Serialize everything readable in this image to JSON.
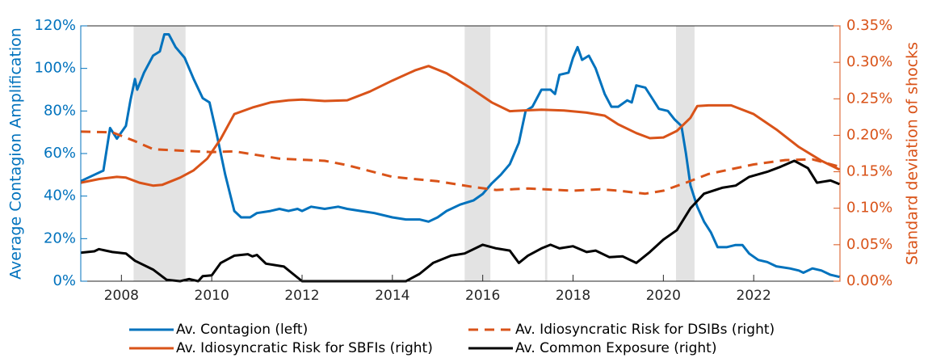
{
  "chart_data": {
    "type": "line",
    "ylabel": "Average Contagion Amplification",
    "y2label": "Standard deviation of shocks",
    "xlim": [
      2007.1,
      2023.91
    ],
    "xticks": [
      2008,
      2010,
      2012,
      2014,
      2016,
      2018,
      2020,
      2022
    ],
    "ylim": [
      0,
      120
    ],
    "yticks": [
      {
        "value": 0,
        "label": "0%"
      },
      {
        "value": 20,
        "label": "20%"
      },
      {
        "value": 40,
        "label": "40%"
      },
      {
        "value": 60,
        "label": "60%"
      },
      {
        "value": 80,
        "label": "80%"
      },
      {
        "value": 100,
        "label": "100%"
      },
      {
        "value": 120,
        "label": "120%"
      }
    ],
    "y2lim": [
      0,
      0.35
    ],
    "y2ticks": [
      {
        "value": 0,
        "label": "0.00%"
      },
      {
        "value": 0.05,
        "label": "0.05%"
      },
      {
        "value": 0.1,
        "label": "0.10%"
      },
      {
        "value": 0.15,
        "label": "0.15%"
      },
      {
        "value": 0.2,
        "label": "0.20%"
      },
      {
        "value": 0.25,
        "label": "0.25%"
      },
      {
        "value": 0.3,
        "label": "0.30%"
      },
      {
        "value": 0.35,
        "label": "0.35%"
      }
    ],
    "shaded_periods": [
      [
        2008.27,
        2009.42
      ],
      [
        2015.6,
        2016.17
      ],
      [
        2017.38,
        2017.43
      ],
      [
        2020.28,
        2020.69
      ]
    ],
    "shade_color": "#e3e3e3",
    "series": [
      {
        "name": "Av. Contagion (left)",
        "color": "#0072bd",
        "dash": false,
        "x": [
          2007.1,
          2007.4,
          2007.6,
          2007.75,
          2007.9,
          2008.1,
          2008.2,
          2008.3,
          2008.35,
          2008.5,
          2008.7,
          2008.85,
          2008.95,
          2009.05,
          2009.2,
          2009.4,
          2009.6,
          2009.8,
          2009.95,
          2010.1,
          2010.3,
          2010.5,
          2010.65,
          2010.85,
          2011.0,
          2011.3,
          2011.5,
          2011.7,
          2011.9,
          2012.0,
          2012.2,
          2012.5,
          2012.8,
          2013.0,
          2013.3,
          2013.6,
          2014.0,
          2014.3,
          2014.6,
          2014.8,
          2015.0,
          2015.2,
          2015.5,
          2015.8,
          2016.0,
          2016.2,
          2016.4,
          2016.6,
          2016.8,
          2016.95,
          2017.1,
          2017.3,
          2017.5,
          2017.6,
          2017.7,
          2017.9,
          2018.0,
          2018.1,
          2018.2,
          2018.35,
          2018.5,
          2018.7,
          2018.85,
          2019.0,
          2019.2,
          2019.3,
          2019.4,
          2019.6,
          2019.75,
          2019.9,
          2020.1,
          2020.25,
          2020.4,
          2020.5,
          2020.6,
          2020.75,
          2020.9,
          2021.05,
          2021.2,
          2021.4,
          2021.6,
          2021.75,
          2021.9,
          2022.1,
          2022.3,
          2022.5,
          2022.8,
          2023.0,
          2023.1,
          2023.3,
          2023.5,
          2023.7,
          2023.9
        ],
        "values": [
          47,
          50,
          52,
          72,
          67,
          73,
          85,
          95,
          90,
          98,
          106,
          108,
          116,
          116,
          110,
          105,
          95,
          86,
          84,
          70,
          50,
          33,
          30,
          30,
          32,
          33,
          34,
          33,
          34,
          33,
          35,
          34,
          35,
          34,
          33,
          32,
          30,
          29,
          29,
          28,
          30,
          33,
          36,
          38,
          41,
          46,
          50,
          55,
          65,
          80,
          82,
          90,
          90,
          88,
          97,
          98,
          105,
          110,
          104,
          106,
          100,
          88,
          82,
          82,
          85,
          84,
          92,
          91,
          86,
          81,
          80,
          76,
          73,
          60,
          45,
          35,
          28,
          23,
          16,
          16,
          17,
          17,
          13,
          10,
          9,
          7,
          6,
          5,
          4,
          6,
          5,
          3,
          2
        ]
      },
      {
        "name": "Av. Idiosyncratic Risk for DSIBs (right)",
        "color": "#d95319",
        "dash": true,
        "axis": "y2",
        "x": [
          2007.1,
          2007.8,
          2008.3,
          2008.7,
          2009.3,
          2010.0,
          2010.5,
          2011.0,
          2011.5,
          2012.5,
          2013.0,
          2014.0,
          2015.0,
          2015.8,
          2016.3,
          2017.0,
          2018.0,
          2018.6,
          2019.0,
          2019.6,
          2020.0,
          2020.5,
          2021.0,
          2022.0,
          2022.7,
          2023.3,
          2023.9
        ],
        "values": [
          0.205,
          0.204,
          0.192,
          0.181,
          0.179,
          0.177,
          0.178,
          0.173,
          0.168,
          0.165,
          0.159,
          0.143,
          0.137,
          0.129,
          0.125,
          0.127,
          0.124,
          0.126,
          0.124,
          0.12,
          0.124,
          0.135,
          0.147,
          0.16,
          0.166,
          0.167,
          0.157
        ]
      },
      {
        "name": "Av. Idiosyncratic Risk for SBFIs  (right)",
        "color": "#d95319",
        "dash": false,
        "axis": "y2",
        "x": [
          2007.1,
          2007.5,
          2007.9,
          2008.1,
          2008.4,
          2008.7,
          2008.9,
          2009.3,
          2009.6,
          2009.9,
          2010.2,
          2010.5,
          2010.9,
          2011.3,
          2011.7,
          2012.0,
          2012.5,
          2013.0,
          2013.5,
          2014.0,
          2014.5,
          2014.8,
          2015.2,
          2015.7,
          2016.2,
          2016.6,
          2016.9,
          2017.3,
          2017.8,
          2018.3,
          2018.7,
          2019.0,
          2019.4,
          2019.7,
          2020.0,
          2020.3,
          2020.6,
          2020.75,
          2021.0,
          2021.5,
          2022.0,
          2022.5,
          2023.0,
          2023.5,
          2023.9
        ],
        "values": [
          0.135,
          0.14,
          0.143,
          0.142,
          0.135,
          0.131,
          0.132,
          0.142,
          0.152,
          0.168,
          0.195,
          0.229,
          0.238,
          0.245,
          0.248,
          0.249,
          0.247,
          0.248,
          0.26,
          0.275,
          0.289,
          0.295,
          0.285,
          0.266,
          0.245,
          0.233,
          0.234,
          0.235,
          0.234,
          0.231,
          0.227,
          0.215,
          0.203,
          0.196,
          0.197,
          0.206,
          0.224,
          0.24,
          0.241,
          0.241,
          0.229,
          0.208,
          0.184,
          0.165,
          0.153
        ]
      },
      {
        "name": "Av. Common Exposure (right)",
        "color": "#000000",
        "dash": false,
        "axis": "y2",
        "x": [
          2007.1,
          2007.4,
          2007.5,
          2007.8,
          2008.1,
          2008.3,
          2008.7,
          2009.0,
          2009.3,
          2009.5,
          2009.7,
          2009.8,
          2010.0,
          2010.2,
          2010.5,
          2010.8,
          2010.9,
          2011.0,
          2011.2,
          2011.6,
          2011.8,
          2012.0,
          2013.0,
          2014.0,
          2014.3,
          2014.6,
          2014.9,
          2015.3,
          2015.6,
          2016.0,
          2016.3,
          2016.6,
          2016.8,
          2017.0,
          2017.3,
          2017.5,
          2017.7,
          2018.0,
          2018.3,
          2018.5,
          2018.8,
          2019.1,
          2019.4,
          2019.7,
          2020.0,
          2020.3,
          2020.6,
          2020.9,
          2021.3,
          2021.6,
          2021.9,
          2022.3,
          2022.6,
          2022.9,
          2023.2,
          2023.4,
          2023.7,
          2023.9
        ],
        "values": [
          0.039,
          0.041,
          0.044,
          0.04,
          0.038,
          0.028,
          0.016,
          0.002,
          0,
          0.003,
          0,
          0.007,
          0.008,
          0.025,
          0.035,
          0.037,
          0.034,
          0.036,
          0.024,
          0.02,
          0.01,
          0,
          0,
          0,
          0,
          0.01,
          0.025,
          0.035,
          0.038,
          0.05,
          0.045,
          0.042,
          0.025,
          0.035,
          0.045,
          0.05,
          0.045,
          0.048,
          0.04,
          0.042,
          0.033,
          0.034,
          0.025,
          0.04,
          0.057,
          0.07,
          0.1,
          0.12,
          0.128,
          0.131,
          0.143,
          0.15,
          0.157,
          0.165,
          0.155,
          0.135,
          0.138,
          0.133
        ]
      }
    ]
  }
}
